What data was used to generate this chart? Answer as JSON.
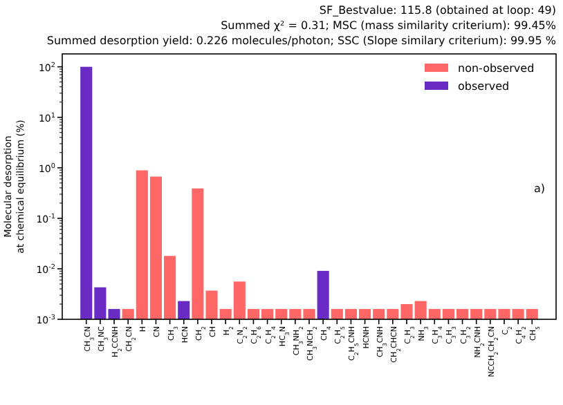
{
  "chart_data": {
    "type": "bar",
    "title": "SF_Bestvalue: 115.8 (obtained at loop: 49)",
    "subtitle": "Summed χ² =  0.31; MSC (mass similarity criterium): 99.45%",
    "ylabel": "Molecular desorption\nat chemical equilibrium (%)",
    "annotations": [
      "Summed desorption yield: 0.226 molecules/photon; SSC (Slope similary criterium): 99.95 %",
      "a)"
    ],
    "categories": [
      "CH$_{3}$CN",
      "CH$_{3}$NC",
      "H$_{2}$CCNH",
      "CH$_{2}$CN",
      "H",
      "CN",
      "CH$_{3}$",
      "HCN",
      "CH$_{2}$",
      "CH",
      "H$_{2}$",
      "C$_{2}$N$_{2}$",
      "C$_{2}$H$_{6}$",
      "C$_{2}$H$_{4}$",
      "HC$_{3}$N",
      "CH$_{3}$NH$_{2}$",
      "CH$_{3}$NCH$_{2}$",
      "CH$_{4}$",
      "C$_{2}$H$_{5}$",
      "C$_{2}$H$_{5}$CNH",
      "HCNH",
      "CH$_{3}$CNH",
      "CH$_{2}$CHCN",
      "C$_{2}$H$_{3}$",
      "NH$_{3}$",
      "C$_{3}$H$_{4}$",
      "C$_{3}$H$_{3}$",
      "C$_{3}$H$_{2}$",
      "NH$_{2}$CNH",
      "NCCH$_{2}$CH$_{2}$CN",
      "C$_{2}$",
      "C$_{4}$H$_{2}$",
      "CH$_{5}$"
    ],
    "series": [
      {
        "name": "non-observed",
        "color": "#ff6666",
        "values": [
          null,
          null,
          null,
          0.0016,
          0.89,
          0.67,
          0.018,
          null,
          0.39,
          0.0037,
          0.0016,
          0.0056,
          0.0016,
          0.0016,
          0.0016,
          0.0016,
          0.0016,
          null,
          0.0016,
          0.0016,
          0.0016,
          0.0016,
          0.0016,
          0.002,
          0.0023,
          0.0016,
          0.0016,
          0.0016,
          0.0016,
          0.0016,
          0.0016,
          0.0016,
          0.0016
        ]
      },
      {
        "name": "observed",
        "color": "#6a2bc4",
        "values": [
          100,
          0.0043,
          0.0016,
          null,
          null,
          null,
          null,
          0.0023,
          null,
          null,
          null,
          null,
          null,
          null,
          null,
          null,
          null,
          0.0091,
          null,
          null,
          null,
          null,
          null,
          null,
          null,
          null,
          null,
          null,
          null,
          null,
          null,
          null,
          null
        ]
      }
    ],
    "log": true,
    "ylim": [
      0.001,
      180
    ],
    "yticks": [
      {
        "value": 0.001,
        "label": "10$^{-3}$"
      },
      {
        "value": 0.01,
        "label": "10$^{-2}$"
      },
      {
        "value": 0.1,
        "label": "10$^{-1}$"
      },
      {
        "value": 1,
        "label": "10$^{0}$"
      },
      {
        "value": 10,
        "label": "10$^{1}$"
      },
      {
        "value": 100,
        "label": "10$^{2}$"
      }
    ],
    "legend": "top right",
    "grid": false
  }
}
